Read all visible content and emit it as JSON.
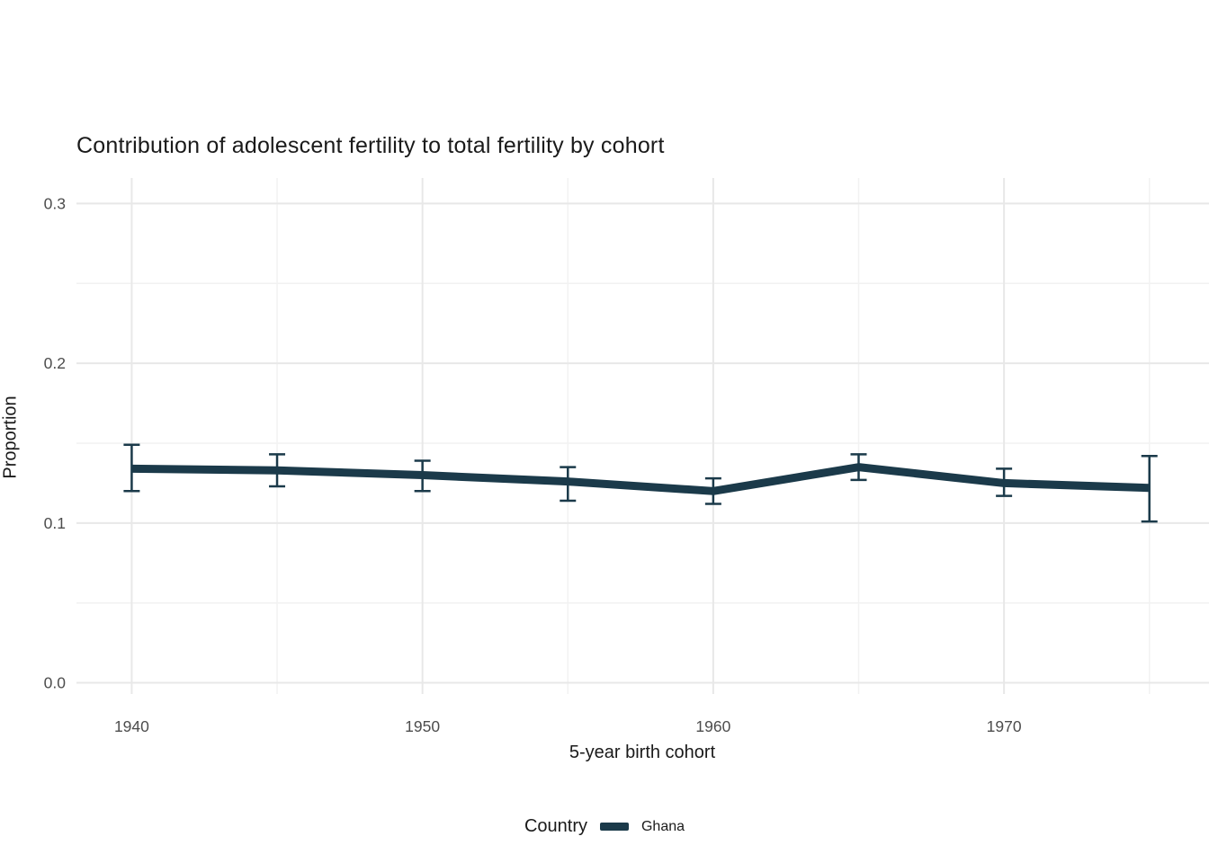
{
  "chart_data": {
    "type": "line",
    "title": "Contribution of adolescent fertility to total fertility by cohort",
    "xlabel": "5-year birth cohort",
    "ylabel": "Proportion",
    "x_ticks": [
      1940,
      1950,
      1960,
      1970
    ],
    "x_tick_labels": [
      "1940",
      "1950",
      "1960",
      "1970"
    ],
    "x_minor_ticks": [
      1945,
      1955,
      1965,
      1975
    ],
    "y_ticks": [
      0.0,
      0.1,
      0.2,
      0.3
    ],
    "y_tick_labels": [
      "0.0",
      "0.1",
      "0.2",
      "0.3"
    ],
    "y_minor_ticks": [
      0.05,
      0.15,
      0.25
    ],
    "xlim": [
      1938.1,
      1977.05
    ],
    "ylim": [
      -0.007,
      0.316
    ],
    "grid": true,
    "legend": {
      "title": "Country",
      "position": "bottom",
      "entries": [
        {
          "label": "Ghana",
          "color": "#1b3a4a"
        }
      ]
    },
    "colors": {
      "grid_major": "#e8e8e8",
      "grid_minor": "#f2f2f2",
      "tick_label": "#4d4d4d"
    },
    "series": [
      {
        "name": "Ghana",
        "color": "#1b3a4a",
        "x": [
          1940,
          1945,
          1950,
          1955,
          1960,
          1965,
          1970,
          1975
        ],
        "y": [
          0.134,
          0.133,
          0.13,
          0.126,
          0.12,
          0.135,
          0.125,
          0.122
        ],
        "y_low": [
          0.12,
          0.123,
          0.12,
          0.114,
          0.112,
          0.127,
          0.117,
          0.101
        ],
        "y_high": [
          0.149,
          0.143,
          0.139,
          0.135,
          0.128,
          0.143,
          0.134,
          0.142
        ]
      }
    ]
  }
}
